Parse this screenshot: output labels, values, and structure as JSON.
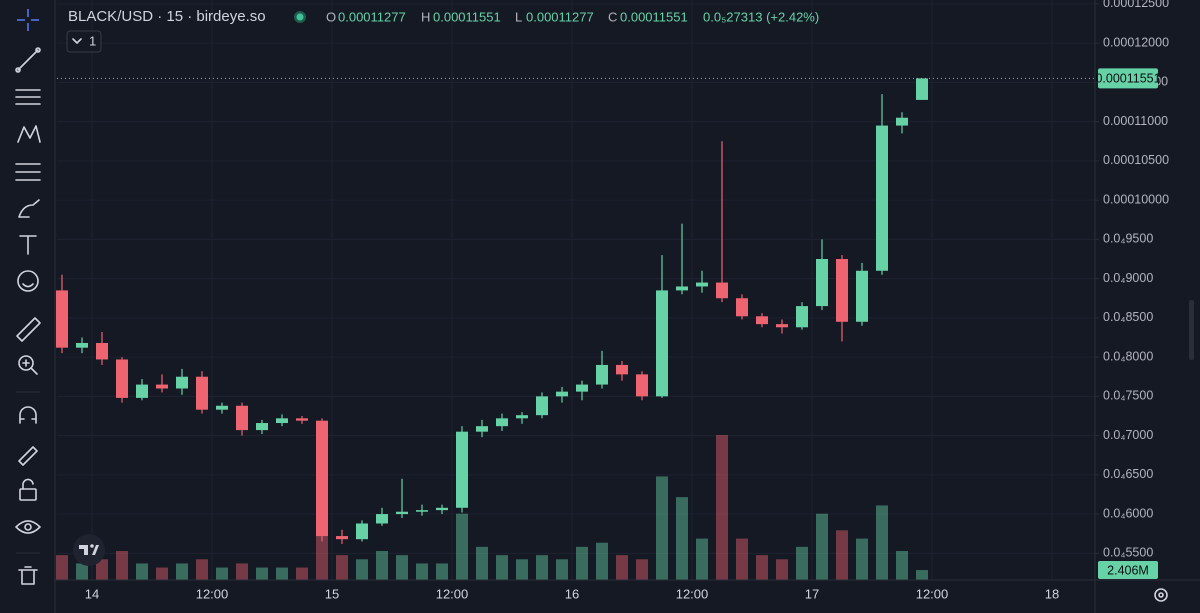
{
  "chart_data": {
    "type": "candlestick",
    "title": "BLACK/USD · 15 · birdeye.so",
    "legend": {
      "o_key": "O",
      "o_value": "0.00011277",
      "h_key": "H",
      "h_value": "0.00011551",
      "l_key": "L",
      "l_value": "0.00011277",
      "c_key": "C",
      "c_value": "0.00011551",
      "change": "0.0₅27313 (+2.42%)"
    },
    "indicator_count": "1",
    "x": [
      -3,
      -1,
      1,
      3,
      5,
      7,
      9,
      11,
      13,
      15,
      17,
      19,
      21,
      23,
      25,
      27,
      29,
      31,
      33,
      35,
      37,
      39,
      41,
      43,
      45,
      47,
      49,
      51,
      53,
      55,
      57,
      59,
      61,
      63,
      65,
      67,
      69,
      71,
      73,
      75,
      77,
      79,
      81,
      83
    ],
    "open": [
      8.85e-05,
      8.12e-05,
      8.18e-05,
      7.97e-05,
      7.48e-05,
      7.65e-05,
      7.6e-05,
      7.75e-05,
      7.33e-05,
      7.38e-05,
      7.07e-05,
      7.16e-05,
      7.22e-05,
      7.19e-05,
      5.72e-05,
      5.68e-05,
      5.88e-05,
      6e-05,
      6.03e-05,
      6.05e-05,
      6.08e-05,
      7.05e-05,
      7.12e-05,
      7.22e-05,
      7.26e-05,
      7.5e-05,
      7.56e-05,
      7.65e-05,
      7.9e-05,
      7.78e-05,
      7.5e-05,
      8.85e-05,
      8.9e-05,
      8.95e-05,
      8.75e-05,
      8.52e-05,
      8.42e-05,
      8.38e-05,
      8.65e-05,
      9.25e-05,
      8.45e-05,
      9.1e-05,
      0.0001095,
      0.00011277
    ],
    "high": [
      9.05e-05,
      8.25e-05,
      8.32e-05,
      8e-05,
      7.72e-05,
      7.78e-05,
      7.85e-05,
      7.82e-05,
      7.42e-05,
      7.42e-05,
      7.2e-05,
      7.27e-05,
      7.25e-05,
      7.22e-05,
      5.8e-05,
      5.92e-05,
      6.08e-05,
      6.45e-05,
      6.12e-05,
      6.12e-05,
      7.12e-05,
      7.2e-05,
      7.28e-05,
      7.3e-05,
      7.55e-05,
      7.62e-05,
      7.7e-05,
      8.08e-05,
      7.95e-05,
      7.82e-05,
      9.3e-05,
      9.7e-05,
      9.1e-05,
      0.0001075,
      8.8e-05,
      8.56e-05,
      8.48e-05,
      8.7e-05,
      9.5e-05,
      9.3e-05,
      9.2e-05,
      0.0001135,
      0.0001112,
      0.00011551
    ],
    "low": [
      8.05e-05,
      8.05e-05,
      7.9e-05,
      7.42e-05,
      7.45e-05,
      7.55e-05,
      7.52e-05,
      7.28e-05,
      7.28e-05,
      7e-05,
      7.02e-05,
      7.12e-05,
      7.15e-05,
      5.65e-05,
      5.62e-05,
      5.65e-05,
      5.85e-05,
      5.95e-05,
      5.98e-05,
      6e-05,
      6.02e-05,
      6.98e-05,
      7.06e-05,
      7.15e-05,
      7.22e-05,
      7.42e-05,
      7.45e-05,
      7.6e-05,
      7.7e-05,
      7.45e-05,
      7.48e-05,
      8.8e-05,
      8.82e-05,
      8.7e-05,
      8.48e-05,
      8.38e-05,
      8.3e-05,
      8.35e-05,
      8.6e-05,
      8.2e-05,
      8.4e-05,
      9.05e-05,
      0.0001085,
      0.00011277
    ],
    "close": [
      8.12e-05,
      8.18e-05,
      7.97e-05,
      7.48e-05,
      7.65e-05,
      7.6e-05,
      7.75e-05,
      7.33e-05,
      7.38e-05,
      7.07e-05,
      7.16e-05,
      7.22e-05,
      7.19e-05,
      5.72e-05,
      5.68e-05,
      5.88e-05,
      6e-05,
      6.03e-05,
      6.05e-05,
      6.08e-05,
      7.05e-05,
      7.12e-05,
      7.22e-05,
      7.26e-05,
      7.5e-05,
      7.56e-05,
      7.65e-05,
      7.9e-05,
      7.78e-05,
      7.5e-05,
      8.85e-05,
      8.9e-05,
      8.95e-05,
      8.75e-05,
      8.52e-05,
      8.42e-05,
      8.38e-05,
      8.65e-05,
      9.25e-05,
      8.45e-05,
      9.1e-05,
      0.0001095,
      0.0001105,
      0.00011551
    ],
    "volume": [
      6000000,
      4000000,
      5000000,
      7000000,
      4000000,
      3000000,
      4000000,
      5000000,
      3000000,
      4000000,
      3000000,
      3000000,
      3000000,
      12000000,
      6000000,
      5000000,
      7000000,
      6000000,
      4000000,
      4000000,
      16000000,
      8000000,
      6000000,
      5000000,
      6000000,
      5000000,
      8000000,
      9000000,
      6000000,
      5000000,
      25000000,
      20000000,
      10000000,
      35000000,
      10000000,
      6000000,
      5000000,
      8000000,
      16000000,
      12000000,
      10000000,
      18000000,
      7000000,
      2406000
    ],
    "last_volume_label": "2.406M",
    "up_color": "#66d2a6",
    "down_color": "#ee6470",
    "xlim": [
      -3.5,
      100.3
    ],
    "xticks": [
      {
        "value": 0,
        "label": "14"
      },
      {
        "value": 12,
        "label": "12:00"
      },
      {
        "value": 24,
        "label": "15"
      },
      {
        "value": 36,
        "label": "12:00"
      },
      {
        "value": 48,
        "label": "16"
      },
      {
        "value": 60,
        "label": "12:00"
      },
      {
        "value": 72,
        "label": "17"
      },
      {
        "value": 84,
        "label": "12:00"
      },
      {
        "value": 96,
        "label": "18"
      }
    ],
    "ylim": [
      5.16e-05,
      0.0001255
    ],
    "yticks": [
      {
        "value": 0.000125,
        "label": "0.00012500"
      },
      {
        "value": 0.00012,
        "label": "0.00012000"
      },
      {
        "value": 0.000115,
        "label": "0.00011500"
      },
      {
        "value": 0.00011,
        "label": "0.00011000"
      },
      {
        "value": 0.000105,
        "label": "0.00010500"
      },
      {
        "value": 0.0001,
        "label": "0.00010000"
      },
      {
        "value": 9.5e-05,
        "label": "0.0₄9500"
      },
      {
        "value": 9e-05,
        "label": "0.0₄9000"
      },
      {
        "value": 8.5e-05,
        "label": "0.0₄8500"
      },
      {
        "value": 8e-05,
        "label": "0.0₄8000"
      },
      {
        "value": 7.5e-05,
        "label": "0.0₄7500"
      },
      {
        "value": 7e-05,
        "label": "0.0₄7000"
      },
      {
        "value": 6.5e-05,
        "label": "0.0₄6500"
      },
      {
        "value": 6e-05,
        "label": "0.0₄6000"
      },
      {
        "value": 5.5e-05,
        "label": "0.0₄5500"
      }
    ],
    "grid": true,
    "last_price_line": true
  }
}
